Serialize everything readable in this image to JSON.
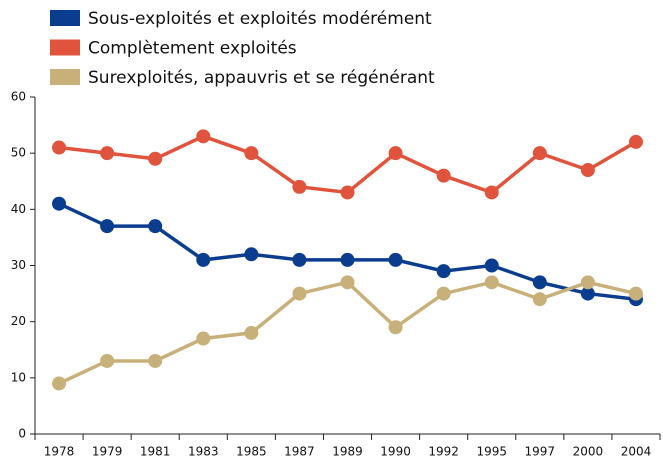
{
  "chart_data": {
    "type": "line",
    "categories": [
      "1978",
      "1979",
      "1981",
      "1983",
      "1985",
      "1987",
      "1989",
      "1990",
      "1992",
      "1995",
      "1997",
      "2000",
      "2004"
    ],
    "series": [
      {
        "name": "Sous-exploités et exploités modérément",
        "color": "#0b3d8f",
        "values": [
          41,
          37,
          37,
          31,
          32,
          31,
          31,
          31,
          29,
          30,
          27,
          25,
          24
        ]
      },
      {
        "name": "Complètement exploités",
        "color": "#e0533c",
        "values": [
          51,
          50,
          49,
          53,
          50,
          44,
          43,
          50,
          46,
          43,
          50,
          47,
          52
        ]
      },
      {
        "name": "Surexploités, appauvris et se régénérant",
        "color": "#c8b07a",
        "values": [
          9,
          13,
          13,
          17,
          18,
          25,
          27,
          19,
          25,
          27,
          24,
          27,
          25
        ]
      }
    ],
    "ylim": [
      0,
      60
    ],
    "yticks": [
      0,
      10,
      20,
      30,
      40,
      50,
      60
    ],
    "grid": false
  }
}
